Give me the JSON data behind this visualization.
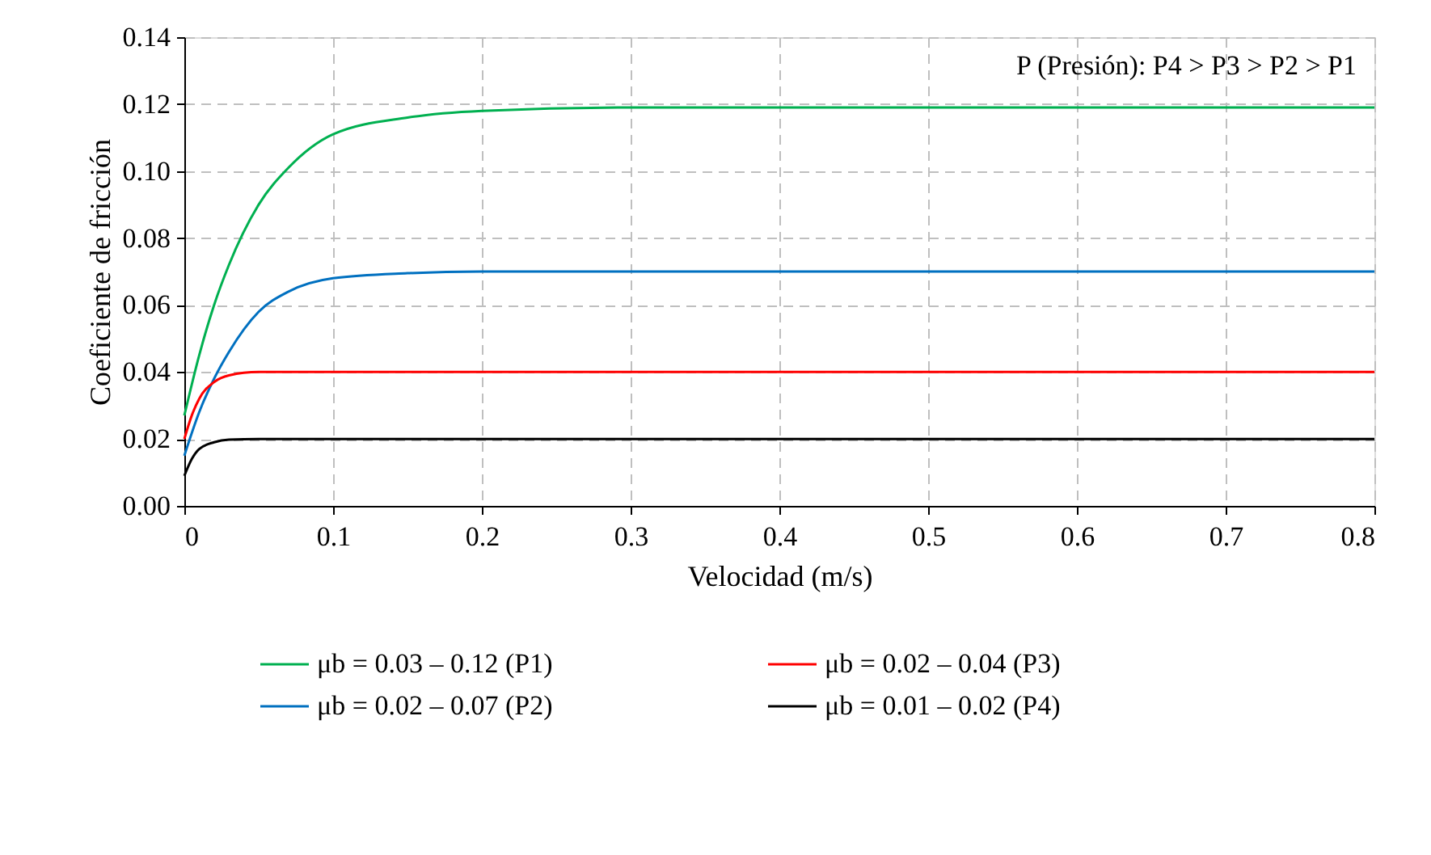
{
  "chart_data": {
    "type": "line",
    "xlabel": "Velocidad (m/s)",
    "ylabel": "Coeficiente de fricción",
    "annotations": [
      {
        "text": "P (Presión): P4 > P3 > P2 > P1"
      }
    ],
    "xlim": [
      0,
      0.8
    ],
    "xticks": [
      0,
      0.1,
      0.2,
      0.3,
      0.4,
      0.5,
      0.6,
      0.7,
      0.8
    ],
    "ylim": [
      0,
      0.14
    ],
    "yticks": [
      {
        "value": 0,
        "label": "0.00"
      },
      0.02,
      0.04,
      0.06,
      0.08,
      {
        "value": 0.1,
        "label": "0.10"
      },
      0.12,
      0.14
    ],
    "grid": true,
    "legend": "bottom",
    "marker": "none",
    "line_style": "solid",
    "series": [
      {
        "name": "μb = 0.03 – 0.12 (P1)",
        "color": "#00b050",
        "x": [
          0,
          0.01,
          0.02,
          0.03,
          0.05,
          0.07,
          0.1,
          0.15,
          0.2,
          0.3,
          0.4,
          0.5,
          0.6,
          0.7,
          0.8
        ],
        "values": [
          0.027,
          0.045,
          0.06,
          0.072,
          0.09,
          0.101,
          0.111,
          0.116,
          0.118,
          0.119,
          0.119,
          0.119,
          0.119,
          0.119,
          0.119
        ]
      },
      {
        "name": "μb = 0.02 – 0.07 (P2)",
        "color": "#0070c0",
        "x": [
          0,
          0.01,
          0.02,
          0.03,
          0.05,
          0.07,
          0.1,
          0.15,
          0.2,
          0.3,
          0.4,
          0.5,
          0.6,
          0.7,
          0.8
        ],
        "values": [
          0.015,
          0.028,
          0.038,
          0.046,
          0.058,
          0.064,
          0.068,
          0.0695,
          0.07,
          0.07,
          0.07,
          0.07,
          0.07,
          0.07,
          0.07
        ]
      },
      {
        "name": "μb = 0.02 – 0.04 (P3)",
        "color": "#ff0000",
        "x": [
          0,
          0.005,
          0.01,
          0.02,
          0.03,
          0.05,
          0.1,
          0.2,
          0.4,
          0.6,
          0.8
        ],
        "values": [
          0.02,
          0.027,
          0.032,
          0.037,
          0.039,
          0.04,
          0.04,
          0.04,
          0.04,
          0.04,
          0.04
        ]
      },
      {
        "name": "μb = 0.01 – 0.02 (P4)",
        "color": "#000000",
        "x": [
          0,
          0.005,
          0.01,
          0.02,
          0.03,
          0.05,
          0.1,
          0.2,
          0.4,
          0.6,
          0.8
        ],
        "values": [
          0.009,
          0.014,
          0.017,
          0.019,
          0.0198,
          0.02,
          0.02,
          0.02,
          0.02,
          0.02,
          0.02
        ]
      }
    ]
  }
}
